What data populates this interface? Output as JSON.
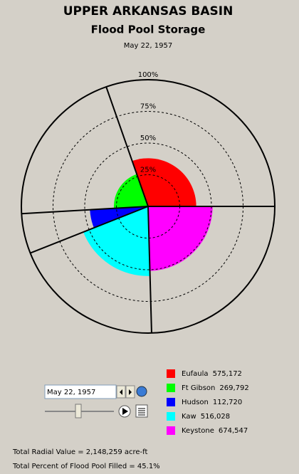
{
  "chart_data": {
    "type": "polar_area",
    "title": "UPPER ARKANSAS BASIN",
    "subtitle": "Flood Pool Storage",
    "date": "May 22, 1957",
    "rlim": [
      0,
      100
    ],
    "rticks": [
      {
        "value": 25,
        "label": "25%"
      },
      {
        "value": 50,
        "label": "50%"
      },
      {
        "value": 75,
        "label": "75%"
      },
      {
        "value": 100,
        "label": "100%"
      }
    ],
    "series": [
      {
        "name": "Eufaula",
        "color": "#ff0000",
        "value": 575172,
        "value_label": "575,172",
        "percent": 38,
        "angle": 109.3
      },
      {
        "name": "Ft Gibson",
        "color": "#00ff00",
        "value": 269792,
        "value_label": "269,792",
        "percent": 27,
        "angle": 74
      },
      {
        "name": "Hudson",
        "color": "#0000ff",
        "value": 112720,
        "value_label": "112,720",
        "percent": 46,
        "angle": 18.3
      },
      {
        "name": "Kaw",
        "color": "#00ffff",
        "value": 516028,
        "value_label": "516,028",
        "percent": 55,
        "angle": 70
      },
      {
        "name": "Keystone",
        "color": "#ff00ff",
        "value": 674547,
        "value_label": "674,547",
        "percent": 51,
        "angle": 88.4
      }
    ]
  },
  "footer": {
    "total_radial": "Total Radial Value =  2,148,259 acre-ft",
    "total_percent": "Total Percent of Flood Pool Filled =  45.1%"
  }
}
